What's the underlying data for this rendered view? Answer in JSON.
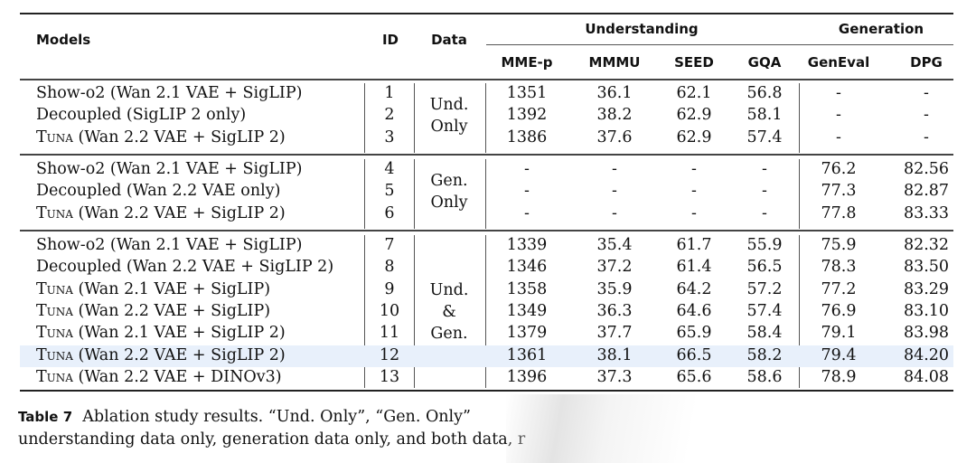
{
  "table": {
    "headers": {
      "models": "Models",
      "id": "ID",
      "data": "Data",
      "understanding": "Understanding",
      "generation": "Generation",
      "metrics": [
        "MME-p",
        "MMMU",
        "SEED",
        "GQA",
        "GenEval",
        "DPG"
      ]
    },
    "groups": [
      {
        "data_label": [
          "Und.",
          "Only"
        ],
        "rows": [
          {
            "prefix": "Show-o2",
            "model": " (Wan 2.1 VAE + SigLIP)",
            "id": "1",
            "values": [
              "1351",
              "36.1",
              "62.1",
              "56.8",
              "-",
              "-"
            ]
          },
          {
            "prefix": "Decoupled",
            "model": " (SigLIP 2 only)",
            "id": "2",
            "values": [
              "1392",
              "38.2",
              "62.9",
              "58.1",
              "-",
              "-"
            ]
          },
          {
            "prefix": "Tuna",
            "model": " (Wan 2.2 VAE + SigLIP 2)",
            "id": "3",
            "values": [
              "1386",
              "37.6",
              "62.9",
              "57.4",
              "-",
              "-"
            ]
          }
        ]
      },
      {
        "data_label": [
          "Gen.",
          "Only"
        ],
        "rows": [
          {
            "prefix": "Show-o2",
            "model": " (Wan 2.1 VAE + SigLIP)",
            "id": "4",
            "values": [
              "-",
              "-",
              "-",
              "-",
              "76.2",
              "82.56"
            ]
          },
          {
            "prefix": "Decoupled",
            "model": " (Wan 2.2 VAE only)",
            "id": "5",
            "values": [
              "-",
              "-",
              "-",
              "-",
              "77.3",
              "82.87"
            ]
          },
          {
            "prefix": "Tuna",
            "model": " (Wan 2.2 VAE + SigLIP 2)",
            "id": "6",
            "values": [
              "-",
              "-",
              "-",
              "-",
              "77.8",
              "83.33"
            ]
          }
        ]
      },
      {
        "data_label": [
          "Und.",
          "&",
          "Gen."
        ],
        "rows": [
          {
            "prefix": "Show-o2",
            "model": " (Wan 2.1 VAE + SigLIP)",
            "id": "7",
            "values": [
              "1339",
              "35.4",
              "61.7",
              "55.9",
              "75.9",
              "82.32"
            ]
          },
          {
            "prefix": "Decoupled",
            "model": " (Wan 2.2 VAE + SigLIP 2)",
            "id": "8",
            "values": [
              "1346",
              "37.2",
              "61.4",
              "56.5",
              "78.3",
              "83.50"
            ]
          },
          {
            "prefix": "Tuna",
            "model": " (Wan 2.1 VAE + SigLIP)",
            "id": "9",
            "values": [
              "1358",
              "35.9",
              "64.2",
              "57.2",
              "77.2",
              "83.29"
            ]
          },
          {
            "prefix": "Tuna",
            "model": " (Wan 2.2 VAE + SigLIP)",
            "id": "10",
            "values": [
              "1349",
              "36.3",
              "64.6",
              "57.4",
              "76.9",
              "83.10"
            ]
          },
          {
            "prefix": "Tuna",
            "model": " (Wan 2.1 VAE + SigLIP 2)",
            "id": "11",
            "values": [
              "1379",
              "37.7",
              "65.9",
              "58.4",
              "79.1",
              "83.98"
            ]
          },
          {
            "prefix": "Tuna",
            "model": " (Wan 2.2 VAE + SigLIP 2)",
            "id": "12",
            "values": [
              "1361",
              "38.1",
              "66.5",
              "58.2",
              "79.4",
              "84.20"
            ],
            "highlight": true
          },
          {
            "prefix": "Tuna",
            "model": " (Wan 2.2 VAE + DINOv3)",
            "id": "13",
            "values": [
              "1396",
              "37.3",
              "65.6",
              "58.6",
              "78.9",
              "84.08"
            ]
          }
        ]
      }
    ],
    "highlight_color": "#e8f0fb"
  },
  "caption": {
    "label": "Table 7",
    "line1": "Ablation study results. “Und. Only”, “Gen. Only”",
    "line2": "understanding data only, generation data only, and both data, r"
  }
}
